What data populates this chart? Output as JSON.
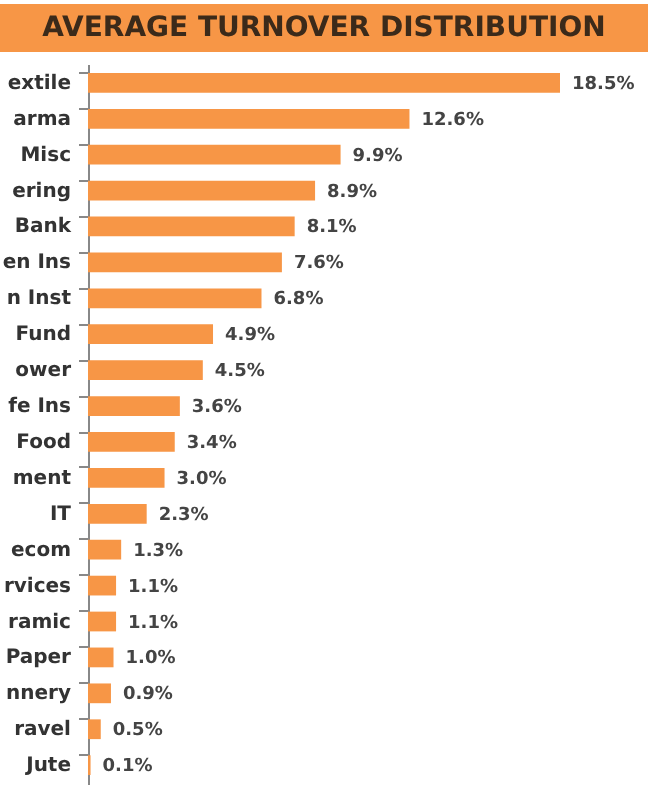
{
  "chart_data": {
    "type": "bar",
    "orientation": "horizontal",
    "title": "AVERAGE TURNOVER DISTRIBUTION",
    "categories": [
      "extile",
      "arma",
      "Misc",
      "ering",
      "Bank",
      "en Ins",
      "n Inst",
      "Fund",
      "ower",
      "fe Ins",
      "Food",
      "ment",
      "IT",
      "ecom",
      "rvices",
      "ramic",
      "Paper",
      "nnery",
      "ravel",
      "Jute"
    ],
    "values": [
      18.5,
      12.6,
      9.9,
      8.9,
      8.1,
      7.6,
      6.8,
      4.9,
      4.5,
      3.6,
      3.4,
      3.0,
      2.3,
      1.3,
      1.1,
      1.1,
      1.0,
      0.9,
      0.5,
      0.1
    ],
    "value_labels": [
      "18.5%",
      "12.6%",
      "9.9%",
      "8.9%",
      "8.1%",
      "7.6%",
      "6.8%",
      "4.9%",
      "4.5%",
      "3.6%",
      "3.4%",
      "3.0%",
      "2.3%",
      "1.3%",
      "1.1%",
      "1.1%",
      "1.0%",
      "0.9%",
      "0.5%",
      "0.1%"
    ],
    "color": "#f79646"
  }
}
